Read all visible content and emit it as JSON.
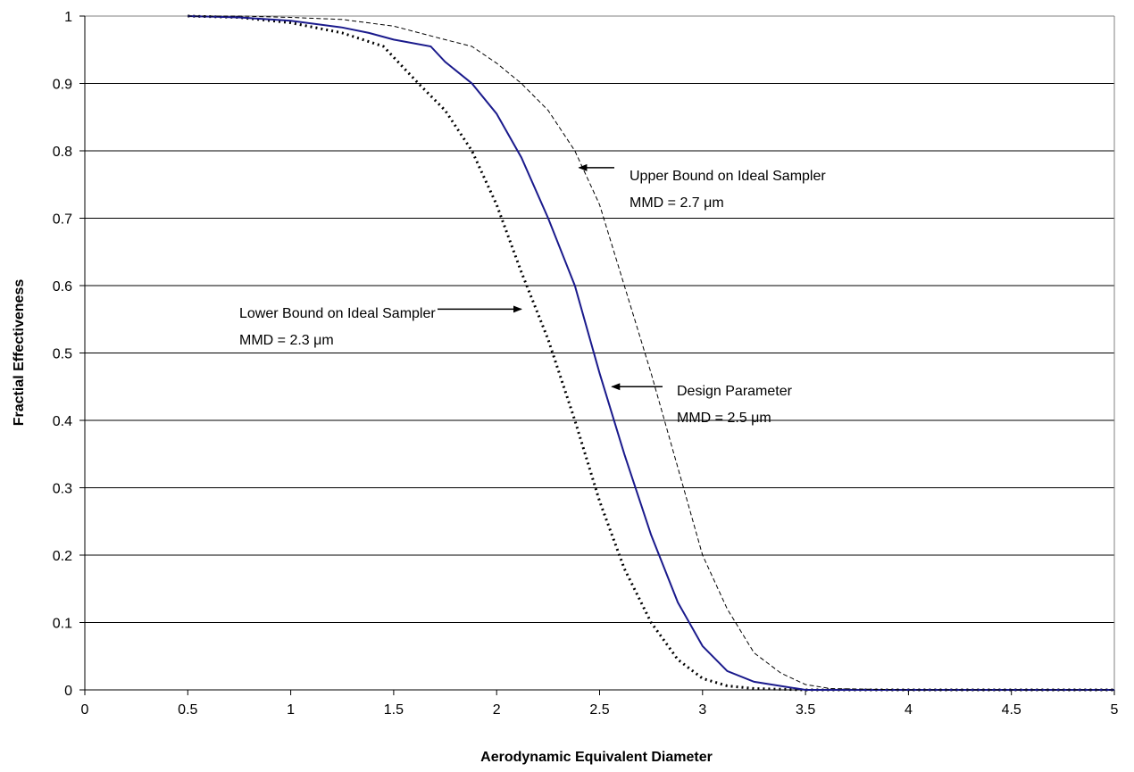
{
  "chart_data": {
    "type": "line",
    "xlabel": "Aerodynamic Equivalent Diameter",
    "ylabel": "Fractial Effectiveness",
    "xlim": [
      0,
      5
    ],
    "ylim": [
      0,
      1
    ],
    "x_ticks": [
      "0",
      "0.5",
      "1",
      "1.5",
      "2",
      "2.5",
      "3",
      "3.5",
      "4",
      "4.5",
      "5"
    ],
    "y_ticks": [
      "0",
      "0.1",
      "0.2",
      "0.3",
      "0.4",
      "0.5",
      "0.6",
      "0.7",
      "0.8",
      "0.9",
      "1"
    ],
    "grid": "horizontal",
    "legend": "none",
    "series": [
      {
        "style": "dotted",
        "color": "#000000",
        "x": [
          0.5,
          0.75,
          1.0,
          1.25,
          1.45,
          1.62,
          1.75,
          1.88,
          2.0,
          2.12,
          2.25,
          2.38,
          2.5,
          2.62,
          2.75,
          2.88,
          3.0,
          3.12,
          3.25,
          3.5,
          4.0,
          5.0
        ],
        "y": [
          1.0,
          0.998,
          0.99,
          0.975,
          0.955,
          0.9,
          0.86,
          0.8,
          0.72,
          0.62,
          0.52,
          0.4,
          0.28,
          0.18,
          0.1,
          0.045,
          0.017,
          0.006,
          0.002,
          0.0,
          0.0,
          0.0
        ]
      },
      {
        "style": "solid",
        "color": "#1a1a8c",
        "x": [
          0.5,
          0.75,
          1.0,
          1.25,
          1.38,
          1.5,
          1.68,
          1.75,
          1.88,
          2.0,
          2.12,
          2.25,
          2.38,
          2.5,
          2.62,
          2.75,
          2.88,
          3.0,
          3.12,
          3.25,
          3.5,
          4.0,
          5.0
        ],
        "y": [
          1.0,
          0.998,
          0.993,
          0.983,
          0.975,
          0.965,
          0.955,
          0.932,
          0.9,
          0.855,
          0.79,
          0.7,
          0.6,
          0.47,
          0.35,
          0.23,
          0.13,
          0.065,
          0.028,
          0.012,
          0.0,
          0.0,
          0.0
        ]
      },
      {
        "style": "dashed",
        "color": "#000000",
        "x": [
          0.5,
          0.75,
          1.0,
          1.25,
          1.5,
          1.75,
          1.88,
          2.0,
          2.12,
          2.25,
          2.38,
          2.5,
          2.62,
          2.75,
          2.88,
          3.0,
          3.12,
          3.25,
          3.38,
          3.5,
          3.62,
          4.0,
          5.0
        ],
        "y": [
          1.0,
          1.0,
          0.998,
          0.995,
          0.985,
          0.965,
          0.955,
          0.93,
          0.9,
          0.86,
          0.8,
          0.72,
          0.6,
          0.47,
          0.33,
          0.2,
          0.12,
          0.055,
          0.025,
          0.008,
          0.002,
          0.0,
          0.0
        ]
      }
    ],
    "annotations": [
      {
        "line1": "Upper Bound on Ideal Sampler",
        "line2": "MMD = 2.7 μm",
        "arrow_to": [
          2.4,
          0.775
        ]
      },
      {
        "line1": "Lower Bound on Ideal Sampler",
        "line2": "MMD = 2.3 μm",
        "arrow_to": [
          2.12,
          0.565
        ]
      },
      {
        "line1": "Design Parameter",
        "line2": "MMD = 2.5 μm",
        "arrow_to": [
          2.56,
          0.45
        ]
      }
    ]
  }
}
